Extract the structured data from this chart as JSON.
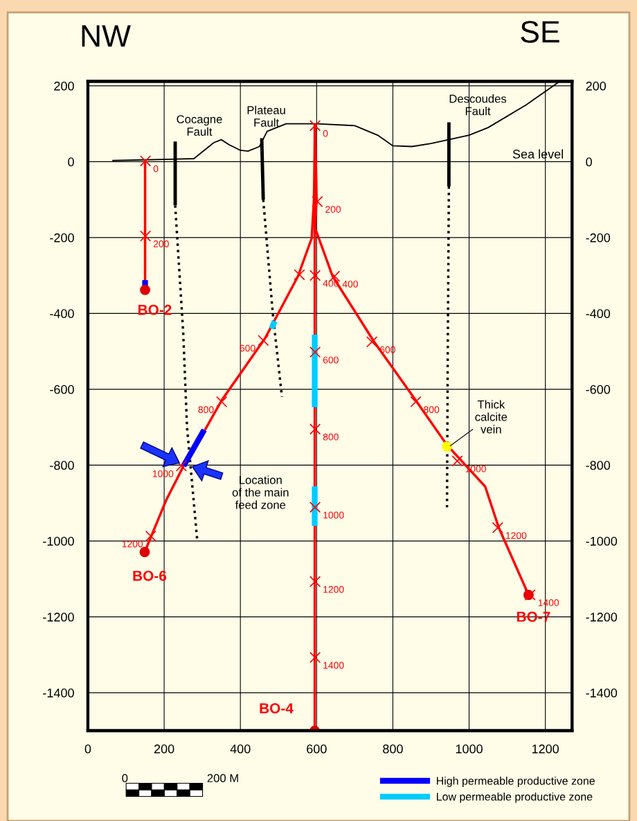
{
  "chart_data": {
    "type": "line",
    "xlim": [
      0,
      1270
    ],
    "ylim": [
      -1500,
      212
    ],
    "y2lim": [
      -1500,
      212
    ],
    "xticks": [
      0,
      200,
      400,
      600,
      800,
      1000,
      1200
    ],
    "yticks": [
      -1400,
      -1200,
      -1000,
      -800,
      -600,
      -400,
      -200,
      0,
      200
    ],
    "y2ticks": [
      -1400,
      -1200,
      -1000,
      -800,
      -600,
      -400,
      -200,
      0,
      200
    ],
    "grid": true,
    "legend": "bottom right",
    "series": [
      {
        "color": "#000000",
        "x": [
          64,
          278,
          330,
          350,
          370,
          400,
          420,
          450,
          470,
          520,
          600,
          700,
          760,
          800,
          850,
          900,
          1000,
          1050,
          1150,
          1235
        ],
        "values": [
          3,
          8,
          50,
          58,
          45,
          30,
          28,
          40,
          80,
          100,
          100,
          95,
          70,
          42,
          40,
          48,
          70,
          90,
          150,
          210
        ]
      },
      {
        "color": "#000000",
        "line_style": "solid",
        "x": [
          229,
          229,
          null,
          456,
          460,
          null,
          947,
          947
        ],
        "values": [
          53,
          -115,
          null,
          62,
          -100,
          null,
          104,
          -65
        ]
      },
      {
        "color": "#000000",
        "line_style": "dotted",
        "x": [
          229,
          250,
          260,
          287,
          null,
          460,
          485,
          509,
          null,
          947,
          944,
          942
        ],
        "values": [
          -115,
          -450,
          -700,
          -1000,
          null,
          -100,
          -400,
          -620,
          null,
          -65,
          -500,
          -911
        ]
      },
      {
        "color": "#ff0000",
        "x": [
          150,
          150
        ],
        "values": [
          5,
          -335
        ]
      },
      {
        "color": "#ff0000",
        "x": [
          595,
          595
        ],
        "values": [
          100,
          -1500
        ]
      },
      {
        "color": "#ff0000",
        "x": [
          596,
          593,
          587,
          551,
          465,
          351,
          305,
          251,
          205,
          149
        ],
        "values": [
          100,
          -100,
          -202,
          -302,
          -465,
          -629,
          -711,
          -802,
          -893,
          -1029
        ]
      },
      {
        "color": "#ff0000",
        "x": [
          596,
          600,
          596,
          642,
          751,
          860,
          942,
          1042,
          1078,
          1156
        ],
        "values": [
          100,
          -100,
          -175,
          -302,
          -475,
          -629,
          -747,
          -856,
          -965,
          -1142
        ]
      },
      {
        "name": "High permeable productive zone",
        "color": "#0000ff",
        "x": [
          305,
          251
        ],
        "values": [
          -707,
          -802
        ]
      },
      {
        "color": "#0000ff",
        "x": [
          150,
          150
        ],
        "values": [
          -312,
          -328
        ]
      },
      {
        "name": "Low permeable productive zone",
        "color": "#00ccff",
        "x": [
          595,
          595
        ],
        "values": [
          -456,
          -647
        ]
      },
      {
        "color": "#00ccff",
        "x": [
          595,
          595
        ],
        "values": [
          -856,
          -960
        ]
      },
      {
        "color": "#00ccff",
        "x": [
          482,
          490
        ],
        "values": [
          -440,
          -420
        ]
      },
      {
        "type": "scatter",
        "marker": "cross",
        "color": "#ff0000",
        "x": [
          151,
          151,
          596,
          602,
          596,
          596,
          596,
          596,
          596,
          596,
          555,
          460,
          351,
          245,
          165,
          647,
          745,
          860,
          969,
          1075,
          1160
        ],
        "values": [
          2,
          -196,
          95,
          -105,
          -300,
          -502,
          -705,
          -911,
          -1107,
          -1307,
          -298,
          -471,
          -633,
          -802,
          -987,
          -302,
          -475,
          -633,
          -789,
          -965,
          -1142
        ]
      },
      {
        "type": "scatter",
        "marker": "circle",
        "color": "#e00000",
        "x": [
          150,
          149,
          1156,
          595
        ],
        "values": [
          -338,
          -1029,
          -1142,
          -1500
        ]
      },
      {
        "type": "scatter",
        "marker": "circle",
        "color": "#ffff00",
        "x": [
          942
        ],
        "values": [
          -751
        ]
      }
    ],
    "annotations": [
      "NW",
      "SE",
      "Sea level",
      "Cocagne\nFault",
      "Plateau\nFault",
      "Descoudes\nFault",
      "0",
      "200 M",
      "Location\nof the main\nfeed zone",
      "Thick\ncalcite\nvein",
      {
        "text": "BO-2",
        "x": 150,
        "y": -338
      },
      {
        "text": "BO-6",
        "x": 149,
        "y": -1029
      },
      {
        "text": "BO-4",
        "x": 595,
        "y": -1500
      },
      {
        "text": "BO-7",
        "x": 1156,
        "y": -1142
      },
      {
        "text": "0",
        "x": 151,
        "y": 2
      },
      {
        "text": "200",
        "x": 151,
        "y": -196
      },
      {
        "text": "0",
        "x": 596,
        "y": 95
      },
      {
        "text": "200",
        "x": 602,
        "y": -105
      },
      {
        "text": "400",
        "x": 596,
        "y": -300
      },
      {
        "text": "600",
        "x": 596,
        "y": -502
      },
      {
        "text": "800",
        "x": 596,
        "y": -705
      },
      {
        "text": "1000",
        "x": 596,
        "y": -911
      },
      {
        "text": "1200",
        "x": 596,
        "y": -1107
      },
      {
        "text": "1400",
        "x": 596,
        "y": -1307
      },
      {
        "text": "600",
        "x": 460,
        "y": -471
      },
      {
        "text": "800",
        "x": 351,
        "y": -633
      },
      {
        "text": "1000",
        "x": 245,
        "y": -802
      },
      {
        "text": "1200",
        "x": 165,
        "y": -987
      },
      {
        "text": "400",
        "x": 647,
        "y": -302
      },
      {
        "text": "600",
        "x": 745,
        "y": -475
      },
      {
        "text": "800",
        "x": 860,
        "y": -633
      },
      {
        "text": "1000",
        "x": 969,
        "y": -789
      },
      {
        "text": "1200",
        "x": 1075,
        "y": -965
      },
      {
        "text": "1400",
        "x": 1160,
        "y": -1142
      }
    ]
  }
}
